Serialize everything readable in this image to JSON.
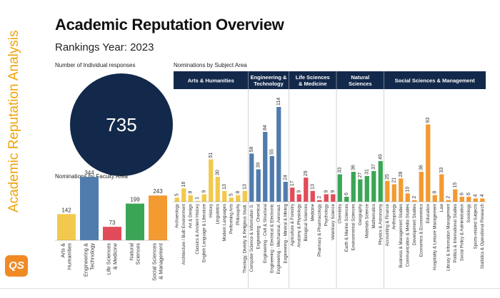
{
  "sidebar": {
    "vertical_title": "Academic Reputation Analysis",
    "logo_text": "QS"
  },
  "header": {
    "title": "Academic Reputation Overview",
    "subtitle": "Rankings Year: 2023"
  },
  "kpi": {
    "label": "Number of Individual responses",
    "value": "735",
    "color": "#13294b"
  },
  "chart_data": [
    {
      "type": "bar",
      "title": "Nominations by Faculty Area",
      "categories": [
        "Arts & Humanities",
        "Engineering & Technology",
        "Life Sciences & Medicine",
        "Natural Sciences",
        "Social Sciences & Management"
      ],
      "values": [
        142,
        344,
        73,
        199,
        243
      ],
      "colors": [
        "#f2c94c",
        "#4f7cac",
        "#e24b5a",
        "#3aa655",
        "#f39a31"
      ],
      "ylim": [
        0,
        360
      ]
    },
    {
      "type": "bar",
      "title": "Nominations by Subject Area",
      "ylim": [
        0,
        120
      ],
      "groups": [
        {
          "name": "Arts & Humanities",
          "color": "#f2c94c",
          "categories": [
            "Archaeology",
            "Architecture / Built Environment",
            "Art & Design",
            "Classics & Ancient History",
            "English Language & Literature",
            "History",
            "Linguistics",
            "Modern Languages",
            "Performing Arts",
            "Philosophy",
            "Theology, Divinity & Religious Studi."
          ],
          "values": [
            5,
            16,
            8,
            1,
            9,
            51,
            30,
            13,
            5,
            8,
            13
          ]
        },
        {
          "name": "Engineering & Technology",
          "color": "#4f7cac",
          "categories": [
            "Computer Science & Information S.",
            "Engineering - Chemical",
            "Engineering - Civil & Structural",
            "Engineering - Electrical & Electronic",
            "Engineering - Mechanical, Aeronaut.",
            "Engineering - Mineral & Mining"
          ],
          "values": [
            58,
            39,
            84,
            55,
            114,
            24
          ]
        },
        {
          "name": "Life Sciences & Medicine",
          "color": "#e24b5a",
          "categories": [
            "Agriculture & Forestry",
            "Anatomy & Physiology",
            "Biological Sciences",
            "Medicine",
            "Pharmacy & Pharmacology",
            "Psychology",
            "Veterinary Science"
          ],
          "values": [
            17,
            9,
            29,
            13,
            2,
            9,
            9
          ]
        },
        {
          "name": "Natural Sciences",
          "color": "#3aa655",
          "categories": [
            "Chemistry",
            "Earth & Marine Sciences",
            "Environmental Sciences",
            "Geography",
            "Materials Science",
            "Mathematics",
            "Physics & Astronomy"
          ],
          "values": [
            33,
            6,
            36,
            27,
            31,
            37,
            49
          ]
        },
        {
          "name": "Social Sciences & Management",
          "color": "#f39a31",
          "categories": [
            "Accounting & Finance",
            "Anthropology",
            "Business & Management Studies",
            "Communication & Media Studies",
            "Development Studies",
            "Economics & Econometrics",
            "Education",
            "Hospitality & Leisure Management",
            "Law",
            "Library & Information Management",
            "Politics & International Studies",
            "Social Policy & Administration",
            "Sociology",
            "Sports-related Subjects",
            "Statistics & Operational Research"
          ],
          "values": [
            25,
            21,
            28,
            10,
            2,
            36,
            93,
            8,
            33,
            2,
            15,
            6,
            6,
            4,
            4
          ]
        }
      ]
    }
  ]
}
